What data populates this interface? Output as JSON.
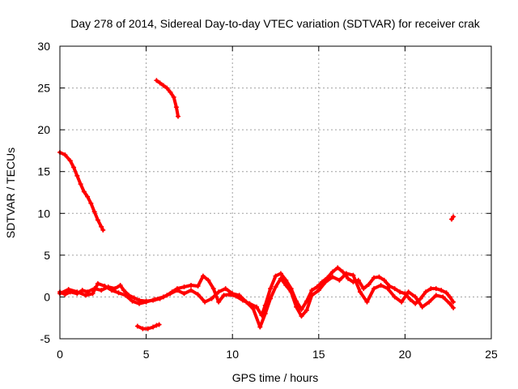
{
  "chart_data": {
    "type": "scatter",
    "title": "Day 278 of 2014, Sidereal Day-to-day VTEC variation (SDTVAR) for receiver crak",
    "xlabel": "GPS time / hours",
    "ylabel": "SDTVAR / TECUs",
    "xlim": [
      0,
      25
    ],
    "ylim": [
      -5,
      30
    ],
    "xticks": [
      0,
      5,
      10,
      15,
      20,
      25
    ],
    "yticks": [
      -5,
      0,
      5,
      10,
      15,
      20,
      25,
      30
    ],
    "grid": true,
    "series": [
      {
        "name": "SDTVAR",
        "color": "#ff0000",
        "segments": [
          [
            [
              0.0,
              17.3
            ],
            [
              0.3,
              17.0
            ],
            [
              0.6,
              16.3
            ],
            [
              0.8,
              15.5
            ],
            [
              1.0,
              14.5
            ],
            [
              1.2,
              13.5
            ],
            [
              1.4,
              12.6
            ],
            [
              1.6,
              12.0
            ],
            [
              1.8,
              11.2
            ],
            [
              2.0,
              10.2
            ],
            [
              2.2,
              9.2
            ],
            [
              2.4,
              8.4
            ],
            [
              2.5,
              8.0
            ]
          ],
          [
            [
              5.6,
              25.9
            ],
            [
              5.8,
              25.6
            ],
            [
              6.0,
              25.3
            ],
            [
              6.2,
              25.0
            ],
            [
              6.4,
              24.5
            ],
            [
              6.6,
              23.9
            ],
            [
              6.75,
              22.7
            ],
            [
              6.85,
              21.6
            ]
          ],
          [
            [
              4.5,
              -3.5
            ],
            [
              4.8,
              -3.8
            ],
            [
              5.1,
              -3.8
            ],
            [
              5.4,
              -3.6
            ],
            [
              5.6,
              -3.4
            ],
            [
              5.75,
              -3.3
            ]
          ],
          [
            [
              22.7,
              9.3
            ],
            [
              22.8,
              9.6
            ]
          ],
          [
            [
              0.0,
              0.6
            ],
            [
              0.3,
              0.3
            ],
            [
              0.6,
              0.6
            ],
            [
              1.0,
              0.4
            ],
            [
              1.3,
              0.8
            ],
            [
              1.6,
              0.6
            ],
            [
              2.0,
              1.0
            ],
            [
              2.4,
              0.8
            ],
            [
              2.8,
              1.2
            ],
            [
              3.2,
              1.0
            ],
            [
              3.5,
              1.4
            ],
            [
              3.7,
              0.8
            ],
            [
              4.0,
              0.2
            ],
            [
              4.3,
              -0.1
            ],
            [
              4.6,
              -0.4
            ],
            [
              5.0,
              -0.5
            ],
            [
              5.4,
              -0.4
            ],
            [
              5.8,
              -0.2
            ],
            [
              6.2,
              0.2
            ],
            [
              6.5,
              0.6
            ],
            [
              6.8,
              1.0
            ],
            [
              7.2,
              1.2
            ],
            [
              7.6,
              1.4
            ],
            [
              8.0,
              1.3
            ],
            [
              8.3,
              2.5
            ],
            [
              8.6,
              2.0
            ],
            [
              8.9,
              1.0
            ],
            [
              9.2,
              -0.6
            ],
            [
              9.5,
              0.2
            ],
            [
              9.8,
              0.3
            ],
            [
              10.2,
              0.1
            ],
            [
              10.6,
              -0.4
            ],
            [
              11.0,
              -0.8
            ],
            [
              11.4,
              -1.2
            ],
            [
              11.7,
              -2.2
            ],
            [
              11.9,
              -1.0
            ],
            [
              12.2,
              1.0
            ],
            [
              12.5,
              2.5
            ],
            [
              12.8,
              2.8
            ],
            [
              13.1,
              2.0
            ],
            [
              13.4,
              1.0
            ],
            [
              13.7,
              -0.5
            ],
            [
              14.0,
              -1.5
            ],
            [
              14.3,
              -0.5
            ],
            [
              14.6,
              0.8
            ],
            [
              14.9,
              1.2
            ],
            [
              15.2,
              1.8
            ],
            [
              15.5,
              2.3
            ],
            [
              15.8,
              3.0
            ],
            [
              16.1,
              3.5
            ],
            [
              16.4,
              3.0
            ],
            [
              16.7,
              2.2
            ],
            [
              17.0,
              1.8
            ],
            [
              17.3,
              2.0
            ],
            [
              17.6,
              1.0
            ],
            [
              17.9,
              1.5
            ],
            [
              18.2,
              2.3
            ],
            [
              18.5,
              2.4
            ],
            [
              18.8,
              2.0
            ],
            [
              19.1,
              1.3
            ],
            [
              19.4,
              1.0
            ],
            [
              19.7,
              0.6
            ],
            [
              20.0,
              0.4
            ],
            [
              20.3,
              -0.3
            ],
            [
              20.6,
              -0.8
            ],
            [
              20.9,
              -0.2
            ],
            [
              21.2,
              0.6
            ],
            [
              21.5,
              1.0
            ],
            [
              21.8,
              1.0
            ],
            [
              22.1,
              0.8
            ],
            [
              22.4,
              0.5
            ],
            [
              22.6,
              0.0
            ],
            [
              22.8,
              -0.6
            ]
          ],
          [
            [
              0.0,
              0.4
            ],
            [
              0.5,
              0.9
            ],
            [
              1.0,
              0.6
            ],
            [
              1.5,
              0.2
            ],
            [
              1.9,
              0.4
            ],
            [
              2.2,
              1.6
            ],
            [
              2.6,
              1.3
            ],
            [
              3.0,
              0.8
            ],
            [
              3.4,
              0.5
            ],
            [
              3.8,
              0.2
            ],
            [
              4.2,
              -0.5
            ],
            [
              4.6,
              -0.8
            ],
            [
              5.0,
              -0.6
            ],
            [
              5.5,
              -0.3
            ],
            [
              6.0,
              0.0
            ],
            [
              6.4,
              0.4
            ],
            [
              6.8,
              0.8
            ],
            [
              7.2,
              0.4
            ],
            [
              7.6,
              0.8
            ],
            [
              8.0,
              0.3
            ],
            [
              8.4,
              -0.6
            ],
            [
              8.8,
              -0.2
            ],
            [
              9.2,
              0.6
            ],
            [
              9.6,
              1.0
            ],
            [
              10.0,
              0.4
            ],
            [
              10.4,
              0.2
            ],
            [
              10.8,
              -0.6
            ],
            [
              11.2,
              -1.4
            ],
            [
              11.6,
              -3.6
            ],
            [
              11.9,
              -2.0
            ],
            [
              12.2,
              -0.2
            ],
            [
              12.5,
              1.2
            ],
            [
              12.8,
              2.2
            ],
            [
              13.1,
              1.4
            ],
            [
              13.4,
              0.6
            ],
            [
              13.7,
              -1.2
            ],
            [
              14.0,
              -2.3
            ],
            [
              14.3,
              -1.6
            ],
            [
              14.6,
              0.2
            ],
            [
              15.0,
              0.8
            ],
            [
              15.4,
              1.8
            ],
            [
              15.8,
              2.4
            ],
            [
              16.2,
              2.0
            ],
            [
              16.6,
              2.8
            ],
            [
              17.0,
              2.6
            ],
            [
              17.4,
              0.6
            ],
            [
              17.8,
              -0.6
            ],
            [
              18.2,
              1.0
            ],
            [
              18.6,
              1.4
            ],
            [
              19.0,
              1.0
            ],
            [
              19.4,
              0.0
            ],
            [
              19.8,
              -0.6
            ],
            [
              20.2,
              0.6
            ],
            [
              20.6,
              0.0
            ],
            [
              21.0,
              -1.2
            ],
            [
              21.4,
              -0.6
            ],
            [
              21.8,
              0.2
            ],
            [
              22.2,
              0.0
            ],
            [
              22.6,
              -0.8
            ],
            [
              22.8,
              -1.3
            ]
          ]
        ]
      }
    ]
  }
}
